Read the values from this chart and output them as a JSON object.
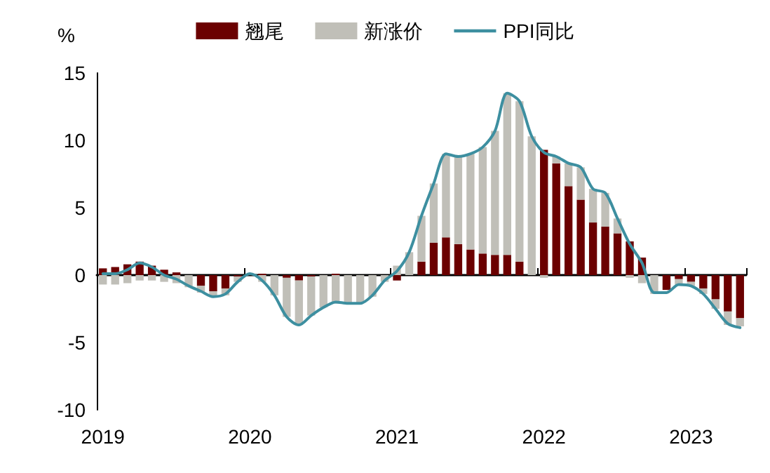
{
  "chart_data": {
    "type": "bar",
    "stacked": true,
    "ylabel": "%",
    "categories": [
      "2019",
      null,
      null,
      null,
      null,
      null,
      null,
      null,
      null,
      null,
      null,
      null,
      "2020",
      null,
      null,
      null,
      null,
      null,
      null,
      null,
      null,
      null,
      null,
      null,
      "2021",
      null,
      null,
      null,
      null,
      null,
      null,
      null,
      null,
      null,
      null,
      null,
      "2022",
      null,
      null,
      null,
      null,
      null,
      null,
      null,
      null,
      null,
      null,
      null,
      "2023",
      null,
      null,
      null,
      null
    ],
    "series": [
      {
        "name": "翘尾",
        "color": "#6b0000",
        "values": [
          0.5,
          0.6,
          0.8,
          1.0,
          0.7,
          0.4,
          0.2,
          0.0,
          -0.8,
          -1.2,
          -1.0,
          -0.1,
          0.0,
          0.1,
          0.0,
          -0.2,
          -0.4,
          -0.1,
          0.0,
          0.1,
          0.0,
          0.0,
          0.0,
          0.0,
          -0.4,
          0.0,
          1.0,
          2.4,
          2.8,
          2.3,
          1.9,
          1.6,
          1.5,
          1.5,
          1.0,
          0.0,
          9.3,
          8.3,
          6.6,
          5.6,
          3.9,
          3.6,
          3.1,
          2.5,
          1.3,
          0.0,
          -1.1,
          -0.3,
          -0.5,
          -1.0,
          -1.8,
          -2.7,
          -3.2
        ]
      },
      {
        "name": "新涨价",
        "color": "#c0bfb8",
        "values": [
          -0.7,
          -0.7,
          -0.6,
          -0.4,
          -0.4,
          -0.5,
          -0.6,
          -0.9,
          -0.5,
          -0.4,
          -0.5,
          -0.4,
          0.1,
          -0.5,
          -1.5,
          -2.9,
          -3.3,
          -2.9,
          -2.4,
          -2.1,
          -2.1,
          -2.1,
          -1.6,
          -0.5,
          0.7,
          1.7,
          3.4,
          4.4,
          6.2,
          6.5,
          7.1,
          7.9,
          9.2,
          12.0,
          11.9,
          10.3,
          -0.2,
          0.5,
          1.7,
          2.4,
          2.5,
          2.5,
          1.1,
          -0.2,
          -0.6,
          -1.4,
          null,
          -0.4,
          -0.3,
          -0.4,
          -0.7,
          -1.0,
          -0.6
        ]
      },
      {
        "name": "PPI同比",
        "type": "line",
        "color": "#3d8fa0",
        "marker": "none",
        "values": [
          0.1,
          0.1,
          0.4,
          0.9,
          0.6,
          0.0,
          -0.3,
          -0.8,
          -1.2,
          -1.6,
          -1.4,
          -0.5,
          0.1,
          -0.4,
          -1.5,
          -3.1,
          -3.7,
          -3.0,
          -2.4,
          -2.0,
          -2.1,
          -2.1,
          -1.5,
          -0.4,
          0.3,
          1.7,
          4.4,
          6.8,
          9.0,
          8.8,
          9.0,
          9.5,
          10.7,
          13.5,
          12.9,
          10.3,
          9.1,
          8.8,
          8.3,
          8.0,
          6.4,
          6.1,
          4.2,
          2.3,
          0.9,
          -1.3,
          -1.3,
          -0.7,
          -0.8,
          -1.4,
          -2.5,
          -3.6,
          -3.9
        ]
      }
    ],
    "ylim": [
      -10,
      15
    ],
    "yticks": [
      -10,
      -5,
      0,
      5,
      10,
      15
    ],
    "legend": "top"
  }
}
